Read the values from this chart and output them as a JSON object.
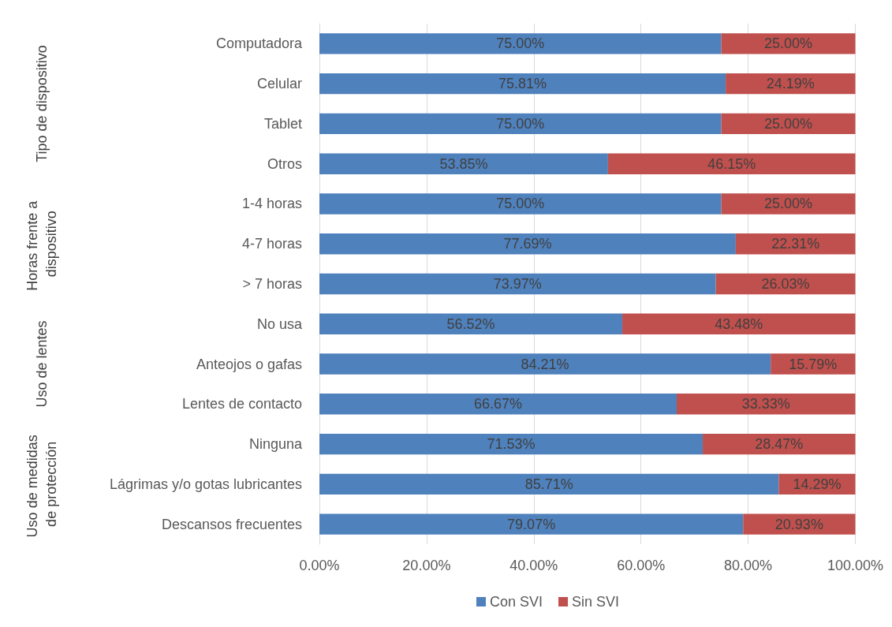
{
  "chart_data": {
    "type": "bar",
    "orientation": "horizontal",
    "stacked": true,
    "categories": [
      "Computadora",
      "Celular",
      "Tablet",
      "Otros",
      "1-4 horas",
      "4-7 horas",
      "> 7 horas",
      "No usa",
      "Anteojos o gafas",
      "Lentes de contacto",
      "Ninguna",
      "Lágrimas y/o gotas lubricantes",
      "Descansos frecuentes"
    ],
    "series": [
      {
        "name": "Con SVI",
        "color": "#4f81bd",
        "values": [
          75.0,
          75.81,
          75.0,
          53.85,
          75.0,
          77.69,
          73.97,
          56.52,
          84.21,
          66.67,
          71.53,
          85.71,
          79.07
        ],
        "value_labels": [
          "75.00%",
          "75.81%",
          "75.00%",
          "53.85%",
          "75.00%",
          "77.69%",
          "73.97%",
          "56.52%",
          "84.21%",
          "66.67%",
          "71.53%",
          "85.71%",
          "79.07%"
        ]
      },
      {
        "name": "Sin SVI",
        "color": "#c0504d",
        "values": [
          25.0,
          24.19,
          25.0,
          46.15,
          25.0,
          22.31,
          26.03,
          43.48,
          15.79,
          33.33,
          28.47,
          14.29,
          20.93
        ],
        "value_labels": [
          "25.00%",
          "24.19%",
          "25.00%",
          "46.15%",
          "25.00%",
          "22.31%",
          "26.03%",
          "43.48%",
          "15.79%",
          "33.33%",
          "28.47%",
          "14.29%",
          "20.93%"
        ]
      }
    ],
    "xlim": [
      0,
      100
    ],
    "xticks": [
      {
        "value": 0,
        "label": "0.00%"
      },
      {
        "value": 20,
        "label": "20.00%"
      },
      {
        "value": 40,
        "label": "40.00%"
      },
      {
        "value": 60,
        "label": "60.00%"
      },
      {
        "value": 80,
        "label": "80.00%"
      },
      {
        "value": 100,
        "label": "100.00%"
      }
    ],
    "grid": "x",
    "legend": "bottom",
    "annotations": [
      "Tipo de dispositivo",
      "Horas frente a dispositivo",
      "Uso de lentes",
      "Uso de medidas de protección"
    ]
  }
}
